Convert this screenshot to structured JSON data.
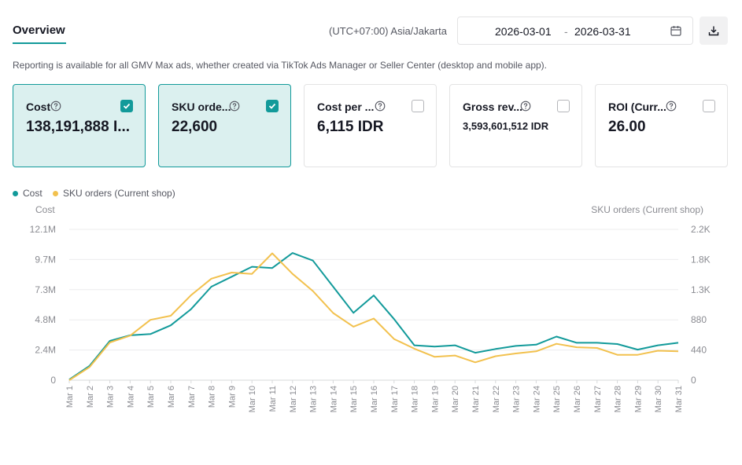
{
  "header": {
    "tab_label": "Overview",
    "timezone": "(UTC+07:00) Asia/Jakarta",
    "date_start": "2026-03-01",
    "date_separator": "-",
    "date_end": "2026-03-31",
    "calendar_icon": "calendar-icon",
    "download_icon": "download-icon"
  },
  "notice": "Reporting is available for all GMV Max ads, whether created via TikTok Ads Manager or Seller Center (desktop and mobile app).",
  "metrics": [
    {
      "title": "Cost",
      "value": "138,191,888 I...",
      "checked": true
    },
    {
      "title": "SKU orde...",
      "value": "22,600",
      "checked": true
    },
    {
      "title": "Cost per ...",
      "value": "6,115 IDR",
      "checked": false
    },
    {
      "title": "Gross rev...",
      "value": "3,593,601,512 IDR",
      "checked": false
    },
    {
      "title": "ROI (Curr...",
      "value": "26.00",
      "checked": false
    }
  ],
  "colors": {
    "accent": "#129a9a",
    "cost_line": "#129a9a",
    "orders_line": "#f2c14e",
    "selected_card_bg": "#dbf0ef"
  },
  "chart_data": {
    "type": "line",
    "left_axis_title": "Cost",
    "right_axis_title": "SKU orders (Current shop)",
    "left_ticks": [
      "0",
      "2.4M",
      "4.8M",
      "7.3M",
      "9.7M",
      "12.1M"
    ],
    "right_ticks": [
      "0",
      "440",
      "880",
      "1.3K",
      "1.8K",
      "2.2K"
    ],
    "ylim_left": [
      0,
      12100000
    ],
    "ylim_right": [
      0,
      2200
    ],
    "grid": true,
    "legend_position": "top-left",
    "categories": [
      "Mar 1",
      "Mar 2",
      "Mar 3",
      "Mar 4",
      "Mar 5",
      "Mar 6",
      "Mar 7",
      "Mar 8",
      "Mar 9",
      "Mar 10",
      "Mar 11",
      "Mar 12",
      "Mar 13",
      "Mar 14",
      "Mar 15",
      "Mar 16",
      "Mar 17",
      "Mar 18",
      "Mar 19",
      "Mar 20",
      "Mar 21",
      "Mar 22",
      "Mar 23",
      "Mar 24",
      "Mar 25",
      "Mar 26",
      "Mar 27",
      "Mar 28",
      "Mar 29",
      "Mar 30",
      "Mar 31"
    ],
    "series": [
      {
        "name": "Cost",
        "axis": "left",
        "color": "#129a9a",
        "values": [
          50000,
          1150000,
          3150000,
          3600000,
          3700000,
          4400000,
          5700000,
          7500000,
          8300000,
          9100000,
          9000000,
          10200000,
          9600000,
          7500000,
          5400000,
          6800000,
          4900000,
          2800000,
          2700000,
          2800000,
          2200000,
          2500000,
          2750000,
          2850000,
          3500000,
          3000000,
          3000000,
          2900000,
          2450000,
          2800000,
          3000000
        ]
      },
      {
        "name": "SKU orders (Current shop)",
        "axis": "right",
        "color": "#f2c14e",
        "values": [
          0,
          190,
          550,
          650,
          880,
          940,
          1240,
          1480,
          1570,
          1550,
          1850,
          1550,
          1300,
          980,
          780,
          900,
          600,
          460,
          340,
          360,
          260,
          350,
          390,
          420,
          530,
          480,
          470,
          370,
          370,
          430,
          420
        ]
      }
    ]
  }
}
